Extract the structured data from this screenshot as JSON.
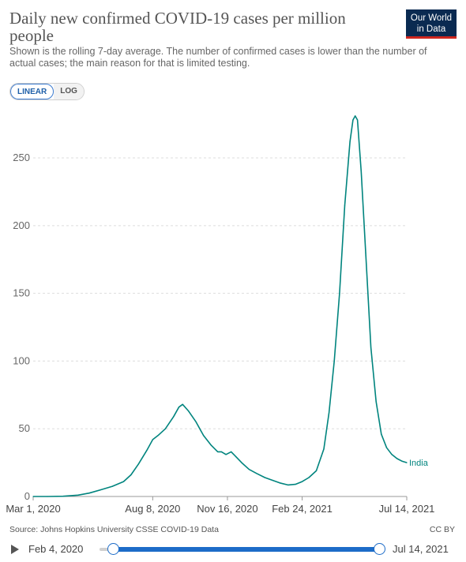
{
  "header": {
    "title": "Daily new confirmed COVID-19 cases per million people",
    "subtitle": "Shown is the rolling 7-day average. The number of confirmed cases is lower than the number of actual cases; the main reason for that is limited testing.",
    "logo_line1": "Our World",
    "logo_line2": "in Data"
  },
  "controls": {
    "linear_label": "LINEAR",
    "log_label": "LOG",
    "active": "linear"
  },
  "footer": {
    "source": "Source: Johns Hopkins University CSSE COVID-19 Data",
    "license": "CC BY"
  },
  "timeline": {
    "start_label": "Feb 4, 2020",
    "end_label": "Jul 14, 2021"
  },
  "colors": {
    "series": "#00847e",
    "grid": "#dddddd",
    "axis_text": "#666666"
  },
  "chart_data": {
    "type": "line",
    "title": "Daily new confirmed COVID-19 cases per million people",
    "xlabel": "",
    "ylabel": "",
    "ylim": [
      0,
      285
    ],
    "yticks": [
      0,
      50,
      100,
      150,
      200,
      250
    ],
    "xlim": [
      "2020-03-01",
      "2021-07-14"
    ],
    "xticks": [
      "Mar 1, 2020",
      "Aug 8, 2020",
      "Nov 16, 2020",
      "Feb 24, 2021",
      "Jul 14, 2021"
    ],
    "xtick_dates": [
      "2020-03-01",
      "2020-08-08",
      "2020-11-16",
      "2021-02-24",
      "2021-07-14"
    ],
    "grid": true,
    "scale": "linear",
    "series": [
      {
        "name": "India",
        "x": [
          "2020-03-01",
          "2020-03-20",
          "2020-04-10",
          "2020-04-30",
          "2020-05-15",
          "2020-05-31",
          "2020-06-15",
          "2020-06-30",
          "2020-07-10",
          "2020-07-20",
          "2020-07-31",
          "2020-08-08",
          "2020-08-15",
          "2020-08-25",
          "2020-09-05",
          "2020-09-12",
          "2020-09-17",
          "2020-09-25",
          "2020-10-05",
          "2020-10-15",
          "2020-10-25",
          "2020-11-03",
          "2020-11-08",
          "2020-11-14",
          "2020-11-21",
          "2020-11-28",
          "2020-12-05",
          "2020-12-15",
          "2020-12-25",
          "2021-01-05",
          "2021-01-15",
          "2021-01-25",
          "2021-02-05",
          "2021-02-15",
          "2021-02-24",
          "2021-03-05",
          "2021-03-15",
          "2021-03-25",
          "2021-04-01",
          "2021-04-08",
          "2021-04-15",
          "2021-04-22",
          "2021-04-29",
          "2021-05-03",
          "2021-05-06",
          "2021-05-09",
          "2021-05-14",
          "2021-05-20",
          "2021-05-27",
          "2021-06-03",
          "2021-06-10",
          "2021-06-17",
          "2021-06-24",
          "2021-07-01",
          "2021-07-08",
          "2021-07-14"
        ],
        "y": [
          0,
          0,
          0.2,
          1,
          2.5,
          5,
          7.5,
          11,
          16,
          24,
          34,
          42,
          45,
          50,
          59,
          66,
          68,
          63,
          55,
          45,
          38,
          33,
          33,
          31,
          33,
          29,
          25,
          20,
          17,
          14,
          12,
          10,
          8.5,
          9,
          11,
          14,
          19,
          35,
          62,
          100,
          150,
          215,
          262,
          278,
          281,
          278,
          240,
          180,
          110,
          70,
          46,
          36,
          31,
          28,
          26,
          25
        ]
      }
    ]
  }
}
